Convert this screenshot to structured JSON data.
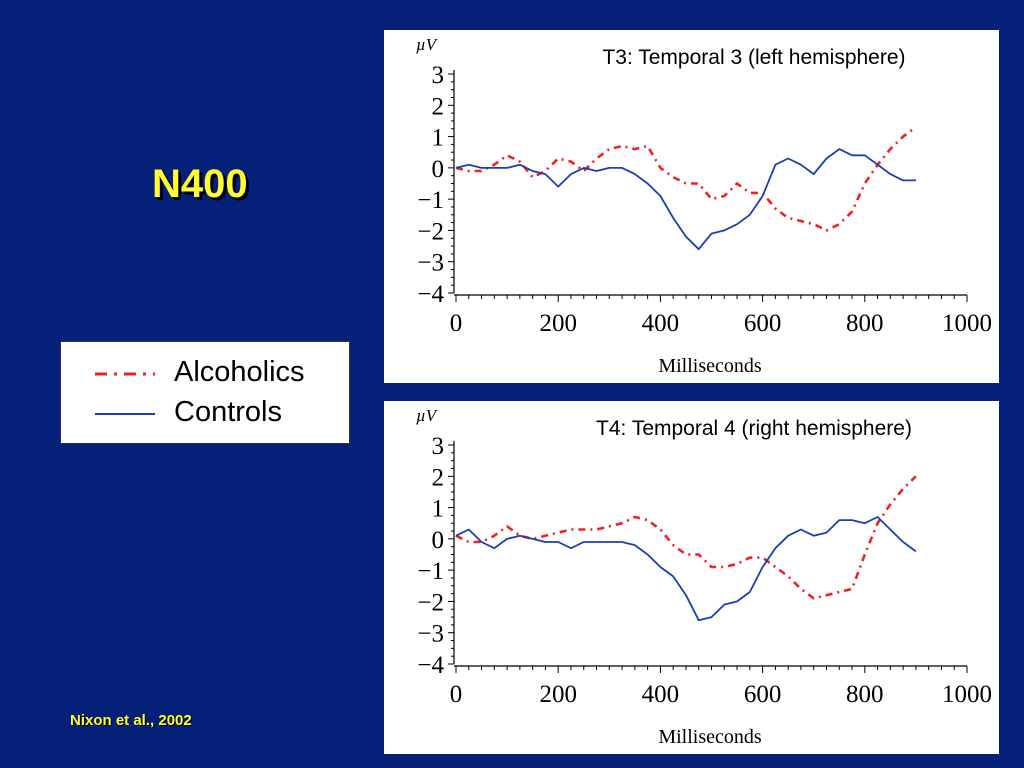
{
  "slide": {
    "title": "N400",
    "citation": "Nixon et al., 2002"
  },
  "legend": {
    "items": [
      {
        "label": "Alcoholics",
        "style": "dash-dot",
        "color": "#ee2222"
      },
      {
        "label": "Controls",
        "style": "solid",
        "color": "#1a3fb0"
      }
    ]
  },
  "colors": {
    "background": "#052079",
    "title": "#ffff33",
    "alcoholics": "#ee2222",
    "controls": "#1a3fb0"
  },
  "chart_data": [
    {
      "type": "line",
      "title": "T3: Temporal 3 (left hemisphere)",
      "xlabel": "Milliseconds",
      "ylabel": "µV",
      "xlim": [
        0,
        1000
      ],
      "ylim": [
        -4,
        3
      ],
      "xticks": [
        0,
        200,
        400,
        600,
        800,
        1000
      ],
      "yticks": [
        3,
        2,
        1,
        0,
        -1,
        -2,
        -3,
        -4
      ],
      "grid": false,
      "series": [
        {
          "name": "Alcoholics",
          "x": [
            0,
            25,
            50,
            75,
            100,
            125,
            150,
            175,
            200,
            225,
            250,
            275,
            300,
            325,
            350,
            375,
            400,
            425,
            450,
            475,
            500,
            525,
            550,
            575,
            600,
            625,
            650,
            675,
            700,
            725,
            750,
            775,
            800,
            825,
            850,
            875,
            900
          ],
          "y": [
            0.0,
            -0.1,
            -0.1,
            0.1,
            0.4,
            0.2,
            -0.3,
            -0.1,
            0.3,
            0.2,
            -0.1,
            0.3,
            0.6,
            0.7,
            0.6,
            0.7,
            0.0,
            -0.3,
            -0.5,
            -0.5,
            -1.0,
            -0.9,
            -0.5,
            -0.8,
            -0.8,
            -1.3,
            -1.6,
            -1.7,
            -1.8,
            -2.0,
            -1.8,
            -1.4,
            -0.5,
            0.1,
            0.6,
            1.0,
            1.3
          ]
        },
        {
          "name": "Controls",
          "x": [
            0,
            25,
            50,
            75,
            100,
            125,
            150,
            175,
            200,
            225,
            250,
            275,
            300,
            325,
            350,
            375,
            400,
            425,
            450,
            475,
            500,
            525,
            550,
            575,
            600,
            625,
            650,
            675,
            700,
            725,
            750,
            775,
            800,
            825,
            850,
            875,
            900
          ],
          "y": [
            0.0,
            0.1,
            0.0,
            0.0,
            0.0,
            0.1,
            -0.1,
            -0.2,
            -0.6,
            -0.2,
            0.0,
            -0.1,
            0.0,
            0.0,
            -0.2,
            -0.5,
            -0.9,
            -1.6,
            -2.2,
            -2.6,
            -2.1,
            -2.0,
            -1.8,
            -1.5,
            -0.9,
            0.1,
            0.3,
            0.1,
            -0.2,
            0.3,
            0.6,
            0.4,
            0.4,
            0.1,
            -0.2,
            -0.4,
            -0.4
          ]
        }
      ]
    },
    {
      "type": "line",
      "title": "T4: Temporal 4 (right hemisphere)",
      "xlabel": "Milliseconds",
      "ylabel": "µV",
      "xlim": [
        0,
        1000
      ],
      "ylim": [
        -4,
        3
      ],
      "xticks": [
        0,
        200,
        400,
        600,
        800,
        1000
      ],
      "yticks": [
        3,
        2,
        1,
        0,
        -1,
        -2,
        -3,
        -4
      ],
      "grid": false,
      "series": [
        {
          "name": "Alcoholics",
          "x": [
            0,
            25,
            50,
            75,
            100,
            125,
            150,
            175,
            200,
            225,
            250,
            275,
            300,
            325,
            350,
            375,
            400,
            425,
            450,
            475,
            500,
            525,
            550,
            575,
            600,
            625,
            650,
            675,
            700,
            725,
            750,
            775,
            800,
            825,
            850,
            875,
            900
          ],
          "y": [
            0.1,
            -0.1,
            -0.1,
            0.1,
            0.4,
            0.1,
            0.0,
            0.1,
            0.2,
            0.3,
            0.3,
            0.3,
            0.4,
            0.5,
            0.7,
            0.6,
            0.3,
            -0.2,
            -0.5,
            -0.5,
            -0.9,
            -0.9,
            -0.8,
            -0.6,
            -0.6,
            -0.9,
            -1.2,
            -1.6,
            -1.9,
            -1.8,
            -1.7,
            -1.6,
            -0.5,
            0.5,
            1.1,
            1.6,
            2.0
          ]
        },
        {
          "name": "Controls",
          "x": [
            0,
            25,
            50,
            75,
            100,
            125,
            150,
            175,
            200,
            225,
            250,
            275,
            300,
            325,
            350,
            375,
            400,
            425,
            450,
            475,
            500,
            525,
            550,
            575,
            600,
            625,
            650,
            675,
            700,
            725,
            750,
            775,
            800,
            825,
            850,
            875,
            900
          ],
          "y": [
            0.1,
            0.3,
            -0.1,
            -0.3,
            0.0,
            0.1,
            0.0,
            -0.1,
            -0.1,
            -0.3,
            -0.1,
            -0.1,
            -0.1,
            -0.1,
            -0.2,
            -0.5,
            -0.9,
            -1.2,
            -1.8,
            -2.6,
            -2.5,
            -2.1,
            -2.0,
            -1.7,
            -0.9,
            -0.3,
            0.1,
            0.3,
            0.1,
            0.2,
            0.6,
            0.6,
            0.5,
            0.7,
            0.3,
            -0.1,
            -0.4
          ]
        }
      ]
    }
  ]
}
